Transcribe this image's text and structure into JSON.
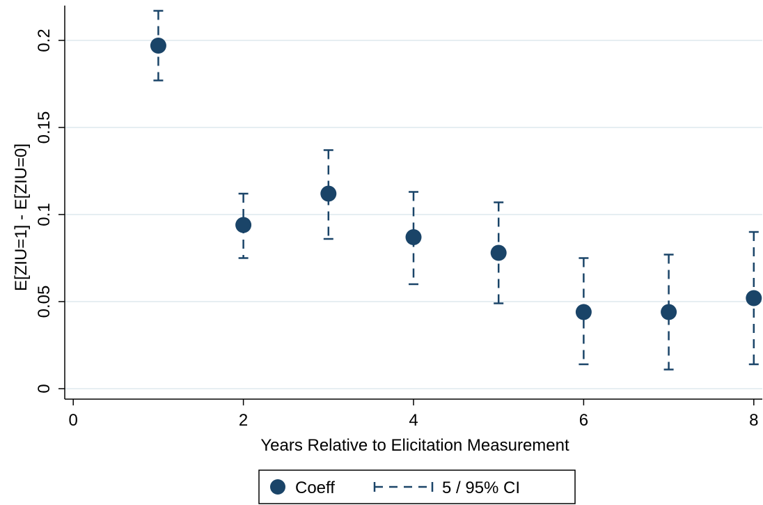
{
  "chart_data": {
    "type": "scatter",
    "xlabel": "Years Relative to Elicitation Measurement",
    "ylabel": "E[ZIU=1] - E[ZIU=0]",
    "x_ticks": [
      "0",
      "2",
      "4",
      "6",
      "8"
    ],
    "y_ticks": [
      "0",
      "0.05",
      "0.1",
      "0.15",
      "0.2"
    ],
    "xlim": [
      -0.1,
      8.1
    ],
    "ylim": [
      -0.006,
      0.22
    ],
    "grid": "horizontal",
    "legend_position": "bottom",
    "series": [
      {
        "name": "Coeff",
        "marker": "circle",
        "color": "#1a4468",
        "points": [
          {
            "x": 1,
            "y": 0.197
          },
          {
            "x": 2,
            "y": 0.094
          },
          {
            "x": 3,
            "y": 0.112
          },
          {
            "x": 4,
            "y": 0.087
          },
          {
            "x": 5,
            "y": 0.078
          },
          {
            "x": 6,
            "y": 0.044
          },
          {
            "x": 7,
            "y": 0.044
          },
          {
            "x": 8,
            "y": 0.052
          }
        ]
      },
      {
        "name": "5 / 95% CI",
        "style": "dashed-capped",
        "color": "#1a4468",
        "intervals": [
          {
            "x": 1,
            "lo": 0.177,
            "hi": 0.217
          },
          {
            "x": 2,
            "lo": 0.075,
            "hi": 0.112
          },
          {
            "x": 3,
            "lo": 0.086,
            "hi": 0.137
          },
          {
            "x": 4,
            "lo": 0.06,
            "hi": 0.113
          },
          {
            "x": 5,
            "lo": 0.049,
            "hi": 0.107
          },
          {
            "x": 6,
            "lo": 0.014,
            "hi": 0.075
          },
          {
            "x": 7,
            "lo": 0.011,
            "hi": 0.077
          },
          {
            "x": 8,
            "lo": 0.014,
            "hi": 0.09
          }
        ]
      }
    ],
    "colors": {
      "marker": "#1a4468",
      "grid": "#e6eef2",
      "axis": "#000000"
    }
  }
}
